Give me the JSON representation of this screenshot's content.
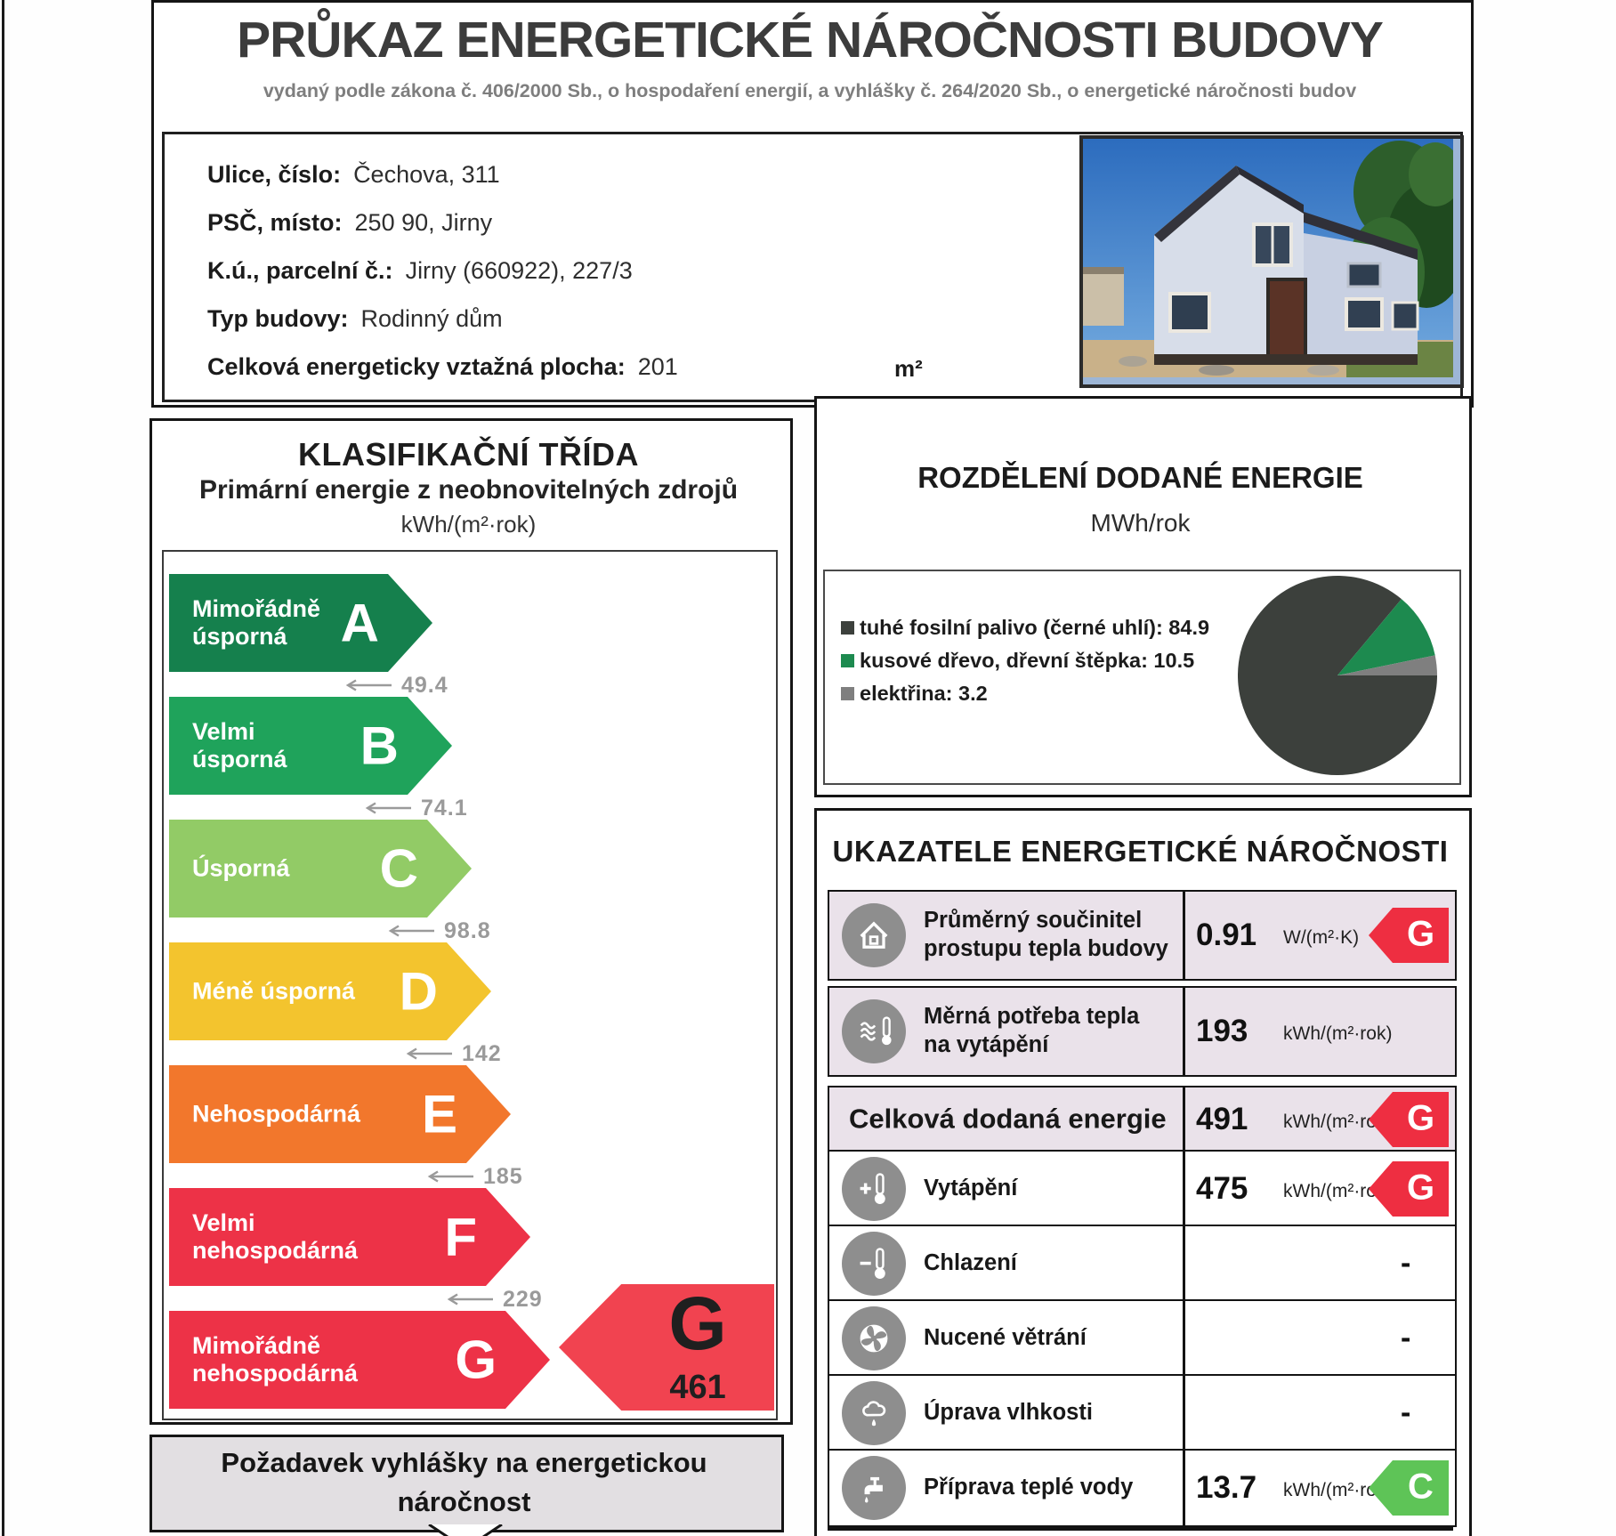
{
  "certificate": {
    "title": "PRŮKAZ ENERGETICKÉ NÁROČNOSTI BUDOVY",
    "subtitle": "vydaný podle zákona č. 406/2000 Sb., o hospodaření energií, a vyhlášky č. 264/2020 Sb., o energetické náročnosti budov"
  },
  "building": {
    "fields": [
      {
        "label": "Ulice, číslo:",
        "value": "Čechova, 311"
      },
      {
        "label": "PSČ, místo:",
        "value": "250 90, Jirny"
      },
      {
        "label": "K.ú., parcelní č.:",
        "value": "Jirny (660922), 227/3"
      },
      {
        "label": "Typ budovy:",
        "value": "Rodinný dům"
      },
      {
        "label": "Celková energeticky vztažná plocha:",
        "value": "201"
      }
    ],
    "area_unit": "m²"
  },
  "classification": {
    "title": "KLASIFIKAČNÍ TŘÍDA",
    "subtitle": "Primární energie z neobnovitelných zdrojů",
    "unit": "kWh/(m²·rok)",
    "classes": [
      {
        "letter": "A",
        "label": "Mimořádně\núsporná",
        "color": "#15804d",
        "threshold": "49.4"
      },
      {
        "letter": "B",
        "label": "Velmi\núsporná",
        "color": "#1fa35b",
        "threshold": "74.1"
      },
      {
        "letter": "C",
        "label": "Úsporná",
        "color": "#92cb66",
        "threshold": "98.8"
      },
      {
        "letter": "D",
        "label": "Méně úsporná",
        "color": "#f3c42e",
        "threshold": "142"
      },
      {
        "letter": "E",
        "label": "Nehospodárná",
        "color": "#f2772c",
        "threshold": "185"
      },
      {
        "letter": "F",
        "label": "Velmi\nnehospodárná",
        "color": "#ed3247",
        "threshold": "229"
      },
      {
        "letter": "G",
        "label": "Mimořádně\nnehospodárná",
        "color": "#ed3247",
        "threshold": null
      }
    ],
    "result": {
      "letter": "G",
      "value": "461",
      "color": "#f14350"
    }
  },
  "requirement": {
    "line1": "Požadavek vyhlášky na energetickou",
    "line2": "náročnost"
  },
  "distribution": {
    "title": "ROZDĚLENÍ DODANÉ ENERGIE",
    "unit": "MWh/rok"
  },
  "chart_data": {
    "type": "pie",
    "title": "ROZDĚLENÍ DODANÉ ENERGIE",
    "unit": "MWh/rok",
    "slices": [
      {
        "label": "tuhé fosilní palivo (černé uhlí)",
        "value": 84.9,
        "color": "#3c403c"
      },
      {
        "label": "kusové dřevo, dřevní štěpka",
        "value": 10.5,
        "color": "#1d8a4f"
      },
      {
        "label": "elektřina",
        "value": 3.2,
        "color": "#7f7f7f"
      }
    ],
    "legend_position": "left"
  },
  "indicators": {
    "title": "UKAZATELE ENERGETICKÉ NÁROČNOSTI",
    "rows": [
      {
        "icon": "house-icon",
        "label": "Průměrný součinitel\nprostupu tepla budovy",
        "value": "0.91",
        "unit": "W/(m²·K)",
        "badge": "G",
        "badge_color": "#ee2e41"
      },
      {
        "icon": "heat-waves-icon",
        "label": "Měrná potřeba tepla\nna vytápění",
        "value": "193",
        "unit": "kWh/(m²·rok)",
        "badge": null
      },
      {
        "icon": null,
        "label": "Celková dodaná energie",
        "value": "491",
        "unit": "kWh/(m²·rok)",
        "badge": "G",
        "badge_color": "#ee2e41",
        "emphasis": true
      },
      {
        "icon": "thermometer-plus-icon",
        "label": "Vytápění",
        "value": "475",
        "unit": "kWh/(m²·rok)",
        "badge": "G",
        "badge_color": "#ee2e41"
      },
      {
        "icon": "thermometer-minus-icon",
        "label": "Chlazení",
        "value": null,
        "unit": null,
        "badge": null,
        "empty": "-"
      },
      {
        "icon": "fan-icon",
        "label": "Nucené větrání",
        "value": null,
        "unit": null,
        "badge": null,
        "empty": "-"
      },
      {
        "icon": "humidity-icon",
        "label": "Úprava vlhkosti",
        "value": null,
        "unit": null,
        "badge": null,
        "empty": "-"
      },
      {
        "icon": "tap-icon",
        "label": "Příprava teplé vody",
        "value": "13.7",
        "unit": "kWh/(m²·rok)",
        "badge": "C",
        "badge_color": "#5ec457"
      }
    ]
  }
}
